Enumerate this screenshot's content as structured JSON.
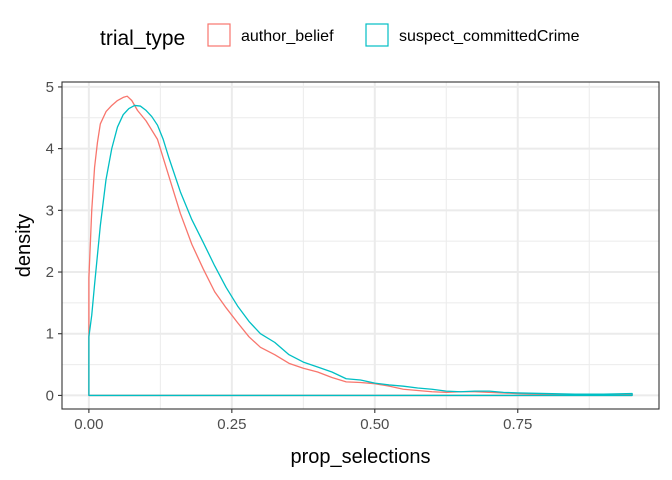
{
  "chart_data": {
    "type": "line",
    "title": "",
    "xlabel": "prop_selections",
    "ylabel": "density",
    "xlim": [
      -0.047,
      0.997
    ],
    "ylim": [
      -0.22,
      5.08
    ],
    "x_ticks": [
      0.0,
      0.25,
      0.5,
      0.75
    ],
    "x_tick_labels": [
      "0.00",
      "0.25",
      "0.50",
      "0.75"
    ],
    "y_ticks": [
      0,
      1,
      2,
      3,
      4,
      5
    ],
    "y_tick_labels": [
      "0",
      "1",
      "2",
      "3",
      "4",
      "5"
    ],
    "grid": true,
    "legend": {
      "title": "trial_type",
      "position": "top"
    },
    "series": [
      {
        "name": "author_belief",
        "color": "#F8766D",
        "x": [
          0.0,
          0.005,
          0.01,
          0.015,
          0.02,
          0.03,
          0.04,
          0.05,
          0.06,
          0.067,
          0.075,
          0.085,
          0.1,
          0.12,
          0.14,
          0.16,
          0.18,
          0.2,
          0.22,
          0.24,
          0.26,
          0.28,
          0.3,
          0.325,
          0.35,
          0.375,
          0.4,
          0.425,
          0.45,
          0.475,
          0.5,
          0.525,
          0.55,
          0.575,
          0.6,
          0.625,
          0.65,
          0.675,
          0.7,
          0.725,
          0.75,
          0.8,
          0.85,
          0.9,
          0.95
        ],
        "y": [
          1.9,
          3.0,
          3.7,
          4.1,
          4.4,
          4.6,
          4.7,
          4.78,
          4.83,
          4.85,
          4.78,
          4.62,
          4.45,
          4.15,
          3.55,
          2.95,
          2.45,
          2.05,
          1.68,
          1.42,
          1.18,
          0.95,
          0.78,
          0.66,
          0.52,
          0.44,
          0.38,
          0.29,
          0.22,
          0.21,
          0.19,
          0.15,
          0.1,
          0.08,
          0.06,
          0.05,
          0.06,
          0.06,
          0.05,
          0.04,
          0.03,
          0.02,
          0.01,
          0.01,
          0.02
        ]
      },
      {
        "name": "suspect_committedCrime",
        "color": "#00BFC4",
        "x": [
          0.0,
          0.005,
          0.01,
          0.02,
          0.03,
          0.04,
          0.05,
          0.06,
          0.07,
          0.08,
          0.09,
          0.1,
          0.11,
          0.12,
          0.13,
          0.14,
          0.16,
          0.18,
          0.2,
          0.22,
          0.24,
          0.26,
          0.28,
          0.3,
          0.325,
          0.35,
          0.375,
          0.4,
          0.425,
          0.45,
          0.475,
          0.5,
          0.525,
          0.55,
          0.575,
          0.6,
          0.625,
          0.65,
          0.675,
          0.7,
          0.725,
          0.75,
          0.8,
          0.85,
          0.9,
          0.95
        ],
        "y": [
          0.95,
          1.3,
          1.8,
          2.75,
          3.5,
          4.0,
          4.35,
          4.55,
          4.65,
          4.7,
          4.69,
          4.62,
          4.52,
          4.38,
          4.15,
          3.85,
          3.3,
          2.85,
          2.48,
          2.1,
          1.75,
          1.45,
          1.2,
          1.0,
          0.86,
          0.66,
          0.54,
          0.46,
          0.38,
          0.27,
          0.25,
          0.2,
          0.17,
          0.15,
          0.12,
          0.1,
          0.07,
          0.06,
          0.07,
          0.07,
          0.05,
          0.04,
          0.03,
          0.02,
          0.02,
          0.03
        ]
      }
    ]
  }
}
